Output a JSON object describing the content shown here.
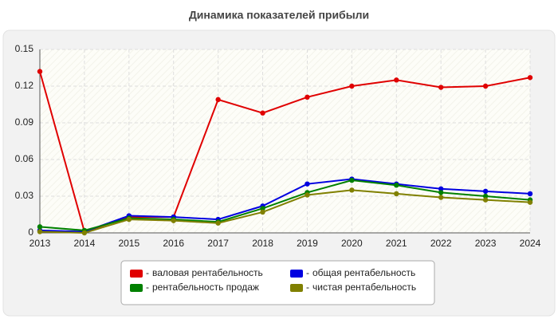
{
  "chart_data": {
    "type": "line",
    "title": "Динамика показателей прибыли",
    "categories": [
      "2013",
      "2014",
      "2015",
      "2016",
      "2017",
      "2018",
      "2019",
      "2020",
      "2021",
      "2022",
      "2023",
      "2024"
    ],
    "ylim": [
      0,
      0.15
    ],
    "yticks": [
      0,
      0.03,
      0.06,
      0.09,
      0.12,
      0.15
    ],
    "grid": true,
    "series": [
      {
        "name": "валовая рентабельность",
        "color": "#e00000",
        "values": [
          0.132,
          0.001,
          0.013,
          0.013,
          0.109,
          0.098,
          0.111,
          0.12,
          0.125,
          0.119,
          0.12,
          0.127
        ]
      },
      {
        "name": "общая рентабельность",
        "color": "#0000e0",
        "values": [
          0.002,
          0.001,
          0.014,
          0.013,
          0.011,
          0.022,
          0.04,
          0.044,
          0.04,
          0.036,
          0.034,
          0.032
        ]
      },
      {
        "name": "рентабельность продаж",
        "color": "#008000",
        "values": [
          0.005,
          0.002,
          0.012,
          0.011,
          0.009,
          0.02,
          0.033,
          0.043,
          0.039,
          0.033,
          0.03,
          0.027
        ]
      },
      {
        "name": "чистая рентабельность",
        "color": "#808000",
        "values": [
          0.001,
          0.0,
          0.011,
          0.01,
          0.008,
          0.017,
          0.031,
          0.035,
          0.032,
          0.029,
          0.027,
          0.025
        ]
      }
    ]
  }
}
